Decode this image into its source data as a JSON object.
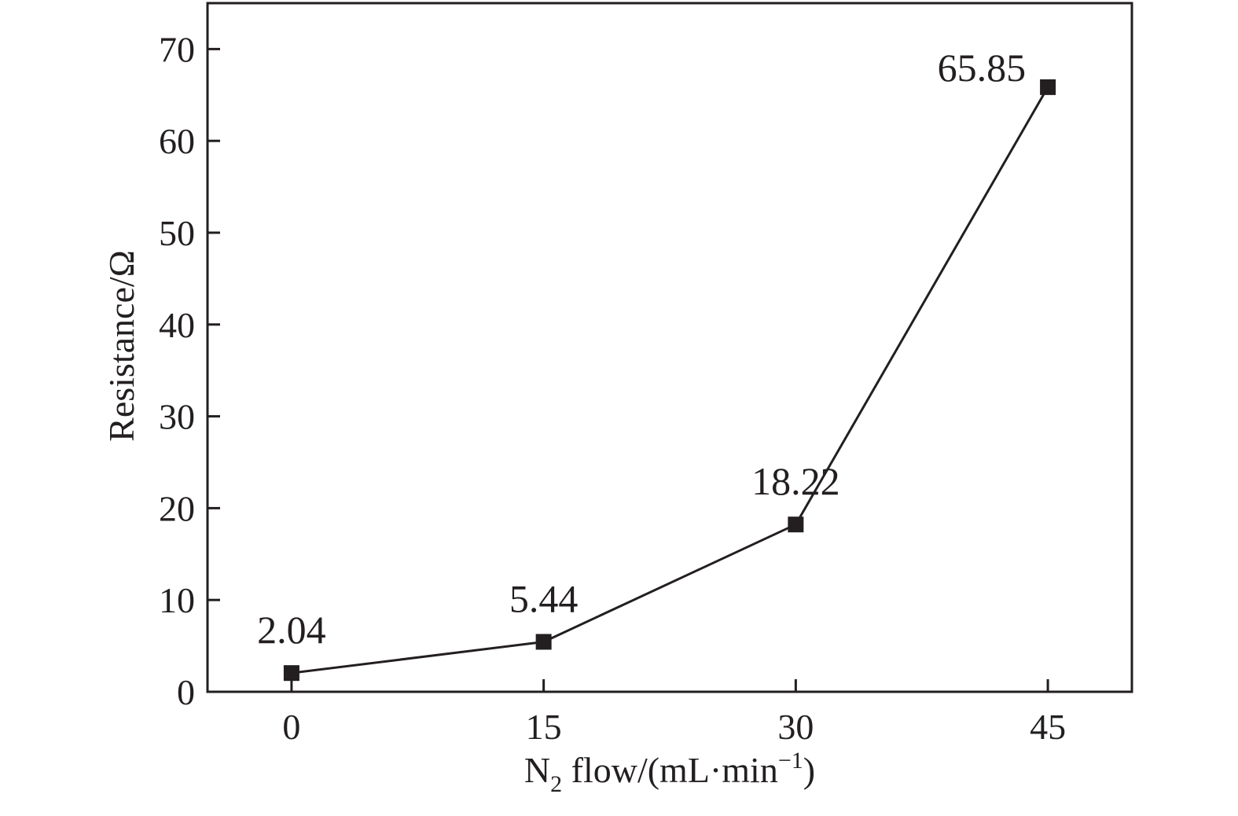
{
  "chart_data": {
    "type": "line",
    "title": "",
    "x": [
      0,
      15,
      30,
      45
    ],
    "series": [
      {
        "values": [
          2.04,
          5.44,
          18.22,
          65.85
        ],
        "data_labels": [
          "2.04",
          "5.44",
          "18.22",
          "65.85"
        ],
        "marker": "square"
      }
    ],
    "xticks": [
      0,
      15,
      30,
      45
    ],
    "xtick_labels": [
      "0",
      "15",
      "30",
      "45"
    ],
    "yticks": [
      0,
      10,
      20,
      30,
      40,
      50,
      60,
      70
    ],
    "ytick_labels": [
      "0",
      "10",
      "20",
      "30",
      "40",
      "50",
      "60",
      "70"
    ],
    "xlim": [
      -5,
      50
    ],
    "ylim": [
      0,
      75
    ],
    "xlabel": {
      "main": "N",
      "subscript": "2",
      "rest": " flow/(mL·min",
      "superscript": "−1",
      "close": ")"
    },
    "ylabel": "Resistance/Ω",
    "grid": false,
    "legend": "none",
    "colors": {
      "line": "#231f20",
      "marker": "#231f20",
      "axis": "#231f20",
      "text": "#231f20"
    }
  }
}
